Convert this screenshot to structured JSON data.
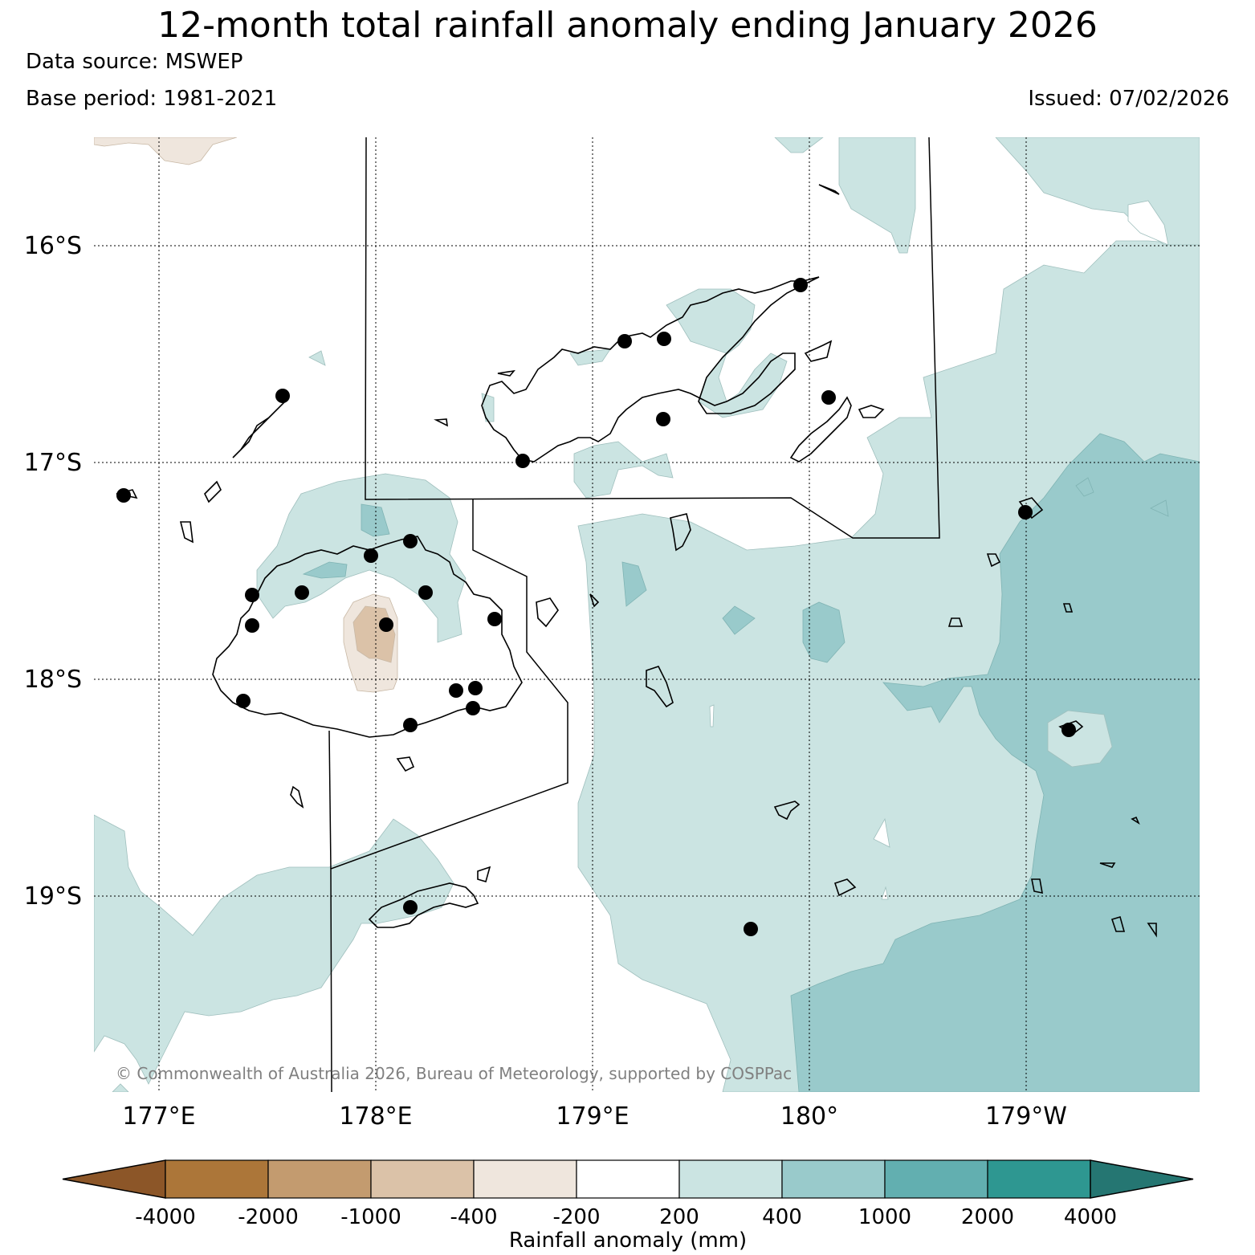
{
  "title": "12-month total rainfall anomaly ending January 2026",
  "data_source": "Data source: MSWEP",
  "base_period": "Base period: 1981-2021",
  "issued": "Issued: 07/02/2026",
  "copyright": "© Commonwealth of Australia 2026, Bureau of Meteorology, supported by COSPPac",
  "lat_ticks": [
    "16°S",
    "17°S",
    "18°S",
    "19°S"
  ],
  "lon_ticks": [
    "177°E",
    "178°E",
    "179°E",
    "180°",
    "179°W"
  ],
  "colorbar": {
    "label": "Rainfall anomaly (mm)",
    "ticks": [
      "-4000",
      "-2000",
      "-1000",
      "-400",
      "-200",
      "200",
      "400",
      "1000",
      "2000",
      "4000"
    ],
    "colors": [
      "#8c5628",
      "#ac7639",
      "#c39b6f",
      "#dbc2a8",
      "#efe6dd",
      "#ffffff",
      "#cbe4e2",
      "#99cacb",
      "#62afb0",
      "#2e9791",
      "#257672"
    ]
  }
}
